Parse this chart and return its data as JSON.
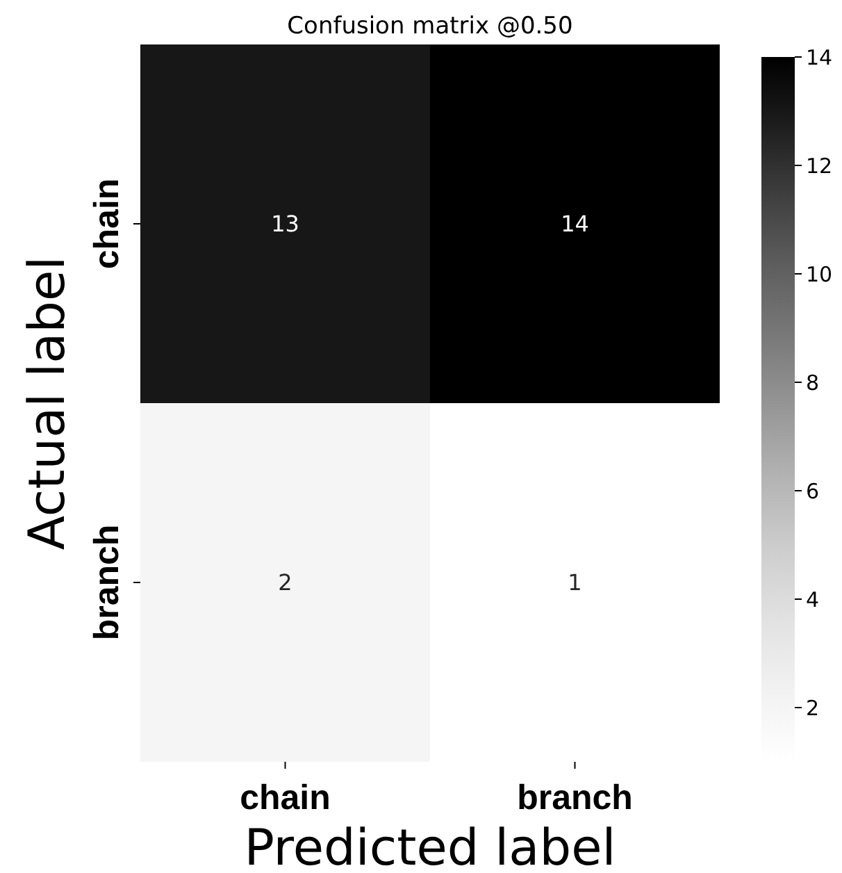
{
  "chart_data": {
    "type": "heatmap",
    "title": "Confusion matrix @0.50",
    "xlabel": "Predicted label",
    "ylabel": "Actual label",
    "categories": [
      "chain",
      "branch"
    ],
    "y_categories": [
      "chain",
      "branch"
    ],
    "cells": [
      [
        13,
        14
      ],
      [
        2,
        1
      ]
    ],
    "clim": [
      1,
      14
    ],
    "cticks": [
      2,
      4,
      6,
      8,
      10,
      12,
      14
    ],
    "data_labels": true
  }
}
